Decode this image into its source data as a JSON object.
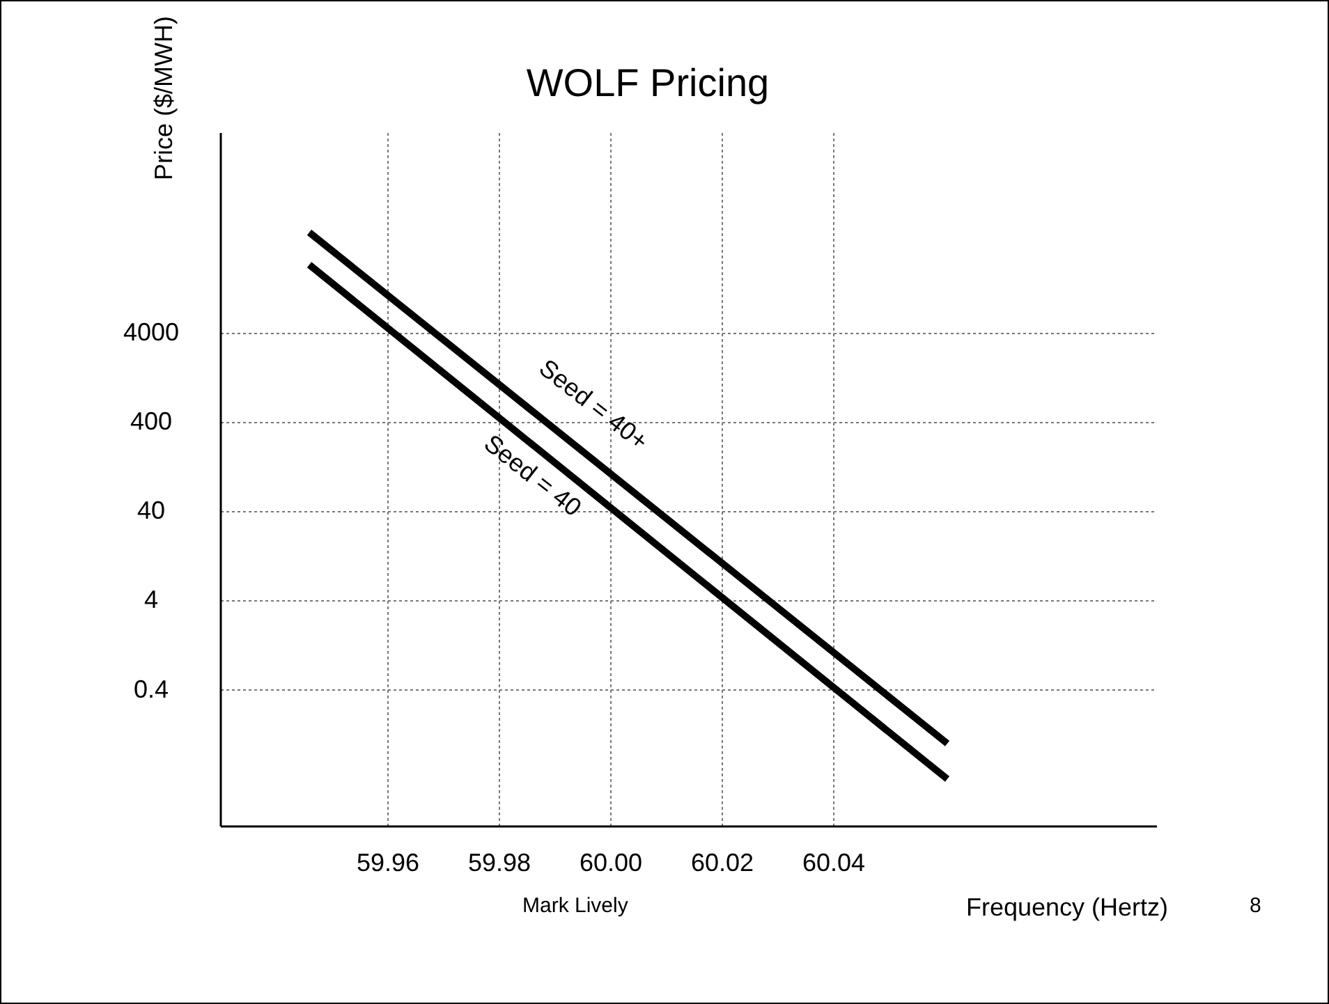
{
  "chart_data": {
    "type": "line",
    "title": "WOLF Pricing",
    "xlabel": "Frequency (Hertz)",
    "ylabel": "Price ($/MWH)",
    "x": [
      59.946,
      60.0605
    ],
    "series": [
      {
        "name": "Seed = 40+",
        "color": "#000000",
        "values": [
          53000,
          0.1
        ]
      },
      {
        "name": "Seed = 40",
        "color": "#000000",
        "values": [
          23000,
          0.04
        ]
      }
    ],
    "xlim": [
      59.93,
      60.098
    ],
    "xticks": [
      59.96,
      59.98,
      {
        "value": 60,
        "label": "60.00"
      },
      60.02,
      60.04
    ],
    "ylim": [
      0.012,
      700000
    ],
    "yticks": [
      0.4,
      4,
      40,
      400,
      4000
    ],
    "log": "y",
    "grid": true,
    "legend": false,
    "marker": "none",
    "line_style": "solid",
    "annotations": [
      "Mark Lively",
      "8"
    ]
  }
}
